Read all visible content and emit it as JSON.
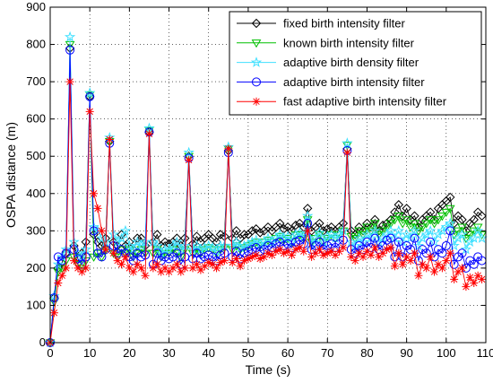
{
  "chart_data": {
    "type": "line",
    "xlabel": "Time (s)",
    "ylabel": "OSPA distance (m)",
    "xlim": [
      0,
      110
    ],
    "ylim": [
      0,
      900
    ],
    "xticks": [
      0,
      10,
      20,
      30,
      40,
      50,
      60,
      70,
      80,
      90,
      100,
      110
    ],
    "yticks": [
      0,
      100,
      200,
      300,
      400,
      500,
      600,
      700,
      800,
      900
    ],
    "xtick_labels": [
      "0",
      "10",
      "20",
      "30",
      "40",
      "50",
      "60",
      "70",
      "80",
      "90",
      "100",
      "110"
    ],
    "ytick_labels": [
      "0",
      "100",
      "200",
      "300",
      "400",
      "500",
      "600",
      "700",
      "800",
      "900"
    ],
    "grid": true,
    "legend_position": "top-right",
    "x": [
      1,
      2,
      3,
      4,
      5,
      6,
      7,
      8,
      9,
      10,
      11,
      12,
      13,
      14,
      15,
      16,
      17,
      18,
      19,
      20,
      21,
      22,
      23,
      24,
      25,
      26,
      27,
      28,
      29,
      30,
      31,
      32,
      33,
      34,
      35,
      36,
      37,
      38,
      39,
      40,
      41,
      42,
      43,
      44,
      45,
      46,
      47,
      48,
      49,
      50,
      51,
      52,
      53,
      54,
      55,
      56,
      57,
      58,
      59,
      60,
      61,
      62,
      63,
      64,
      65,
      66,
      67,
      68,
      69,
      70,
      71,
      72,
      73,
      74,
      75,
      76,
      77,
      78,
      79,
      80,
      81,
      82,
      83,
      84,
      85,
      86,
      87,
      88,
      89,
      90,
      91,
      92,
      93,
      94,
      95,
      96,
      97,
      98,
      99,
      100,
      101,
      102,
      103,
      104,
      105,
      106,
      107,
      108,
      109,
      110
    ],
    "series": [
      {
        "name": "fixed birth intensity filter",
        "color": "#000000",
        "marker": "diamond",
        "values": [
          0,
          120,
          200,
          215,
          240,
          790,
          260,
          230,
          240,
          270,
          660,
          290,
          270,
          260,
          280,
          540,
          270,
          260,
          290,
          260,
          270,
          250,
          280,
          280,
          260,
          565,
          270,
          290,
          260,
          270,
          265,
          270,
          280,
          260,
          280,
          500,
          265,
          285,
          270,
          280,
          290,
          280,
          270,
          290,
          285,
          515,
          280,
          300,
          280,
          290,
          290,
          300,
          305,
          295,
          300,
          310,
          300,
          310,
          320,
          305,
          310,
          300,
          315,
          320,
          310,
          360,
          300,
          310,
          320,
          300,
          305,
          310,
          300,
          310,
          320,
          520,
          300,
          290,
          310,
          300,
          320,
          310,
          330,
          300,
          315,
          320,
          330,
          350,
          370,
          340,
          360,
          330,
          340,
          310,
          330,
          340,
          350,
          330,
          360,
          370,
          380,
          390,
          320,
          340,
          330,
          300,
          320,
          330,
          350,
          340
        ]
      },
      {
        "name": "known birth intensity filter",
        "color": "#00c000",
        "marker": "triangle-down",
        "values": [
          0,
          110,
          190,
          200,
          220,
          800,
          230,
          210,
          200,
          220,
          665,
          230,
          240,
          230,
          250,
          540,
          240,
          230,
          250,
          240,
          250,
          230,
          240,
          250,
          240,
          570,
          240,
          250,
          230,
          240,
          240,
          250,
          240,
          230,
          250,
          500,
          240,
          250,
          240,
          250,
          255,
          250,
          240,
          250,
          255,
          520,
          250,
          260,
          250,
          255,
          260,
          265,
          270,
          260,
          270,
          275,
          270,
          280,
          285,
          275,
          280,
          270,
          290,
          290,
          280,
          330,
          270,
          280,
          290,
          270,
          280,
          290,
          280,
          290,
          300,
          530,
          285,
          280,
          300,
          290,
          310,
          300,
          320,
          290,
          300,
          310,
          320,
          330,
          340,
          320,
          330,
          310,
          320,
          300,
          310,
          320,
          330,
          320,
          330,
          340,
          350,
          360,
          290,
          300,
          310,
          280,
          290,
          300,
          310,
          290
        ]
      },
      {
        "name": "adaptive birth density filter",
        "color": "#40e0ff",
        "marker": "star",
        "values": [
          0,
          125,
          210,
          230,
          250,
          820,
          270,
          240,
          230,
          250,
          670,
          310,
          300,
          280,
          270,
          550,
          290,
          270,
          280,
          300,
          260,
          250,
          270,
          260,
          270,
          575,
          270,
          260,
          240,
          250,
          250,
          260,
          270,
          250,
          260,
          510,
          250,
          260,
          250,
          255,
          260,
          255,
          245,
          260,
          260,
          525,
          260,
          270,
          255,
          260,
          265,
          270,
          275,
          265,
          270,
          280,
          270,
          280,
          290,
          280,
          285,
          270,
          290,
          295,
          285,
          340,
          265,
          280,
          295,
          270,
          285,
          290,
          280,
          290,
          300,
          535,
          270,
          260,
          280,
          270,
          290,
          280,
          300,
          270,
          280,
          290,
          300,
          280,
          300,
          270,
          290,
          280,
          300,
          260,
          280,
          290,
          300,
          270,
          290,
          300,
          310,
          320,
          260,
          280,
          290,
          250,
          270,
          280,
          300,
          280
        ]
      },
      {
        "name": "adaptive birth intensity filter",
        "color": "#0000ff",
        "marker": "circle",
        "values": [
          0,
          120,
          230,
          220,
          240,
          785,
          250,
          225,
          210,
          230,
          660,
          300,
          240,
          230,
          250,
          535,
          260,
          240,
          250,
          240,
          230,
          220,
          240,
          230,
          235,
          565,
          210,
          240,
          220,
          230,
          225,
          230,
          240,
          210,
          230,
          495,
          225,
          240,
          225,
          230,
          235,
          230,
          220,
          235,
          240,
          510,
          230,
          245,
          225,
          240,
          245,
          250,
          255,
          245,
          250,
          260,
          255,
          265,
          270,
          260,
          265,
          255,
          270,
          275,
          265,
          320,
          250,
          260,
          270,
          250,
          260,
          265,
          255,
          265,
          275,
          515,
          250,
          240,
          260,
          250,
          270,
          255,
          280,
          250,
          260,
          275,
          280,
          230,
          270,
          230,
          260,
          250,
          280,
          220,
          250,
          240,
          270,
          230,
          250,
          240,
          260,
          300,
          210,
          230,
          240,
          200,
          220,
          210,
          230,
          220
        ]
      },
      {
        "name": "fast adaptive birth intensity filter",
        "color": "#ff0000",
        "marker": "asterisk",
        "values": [
          0,
          80,
          160,
          180,
          200,
          700,
          220,
          200,
          190,
          200,
          620,
          400,
          360,
          300,
          250,
          545,
          240,
          220,
          210,
          230,
          200,
          190,
          210,
          200,
          180,
          560,
          200,
          210,
          190,
          200,
          190,
          200,
          210,
          190,
          200,
          490,
          200,
          210,
          195,
          205,
          215,
          210,
          200,
          215,
          220,
          520,
          215,
          225,
          205,
          220,
          225,
          230,
          235,
          225,
          230,
          240,
          235,
          245,
          250,
          240,
          245,
          235,
          250,
          255,
          245,
          300,
          230,
          240,
          250,
          235,
          240,
          245,
          235,
          245,
          255,
          510,
          230,
          220,
          240,
          230,
          245,
          235,
          255,
          230,
          240,
          250,
          255,
          205,
          240,
          210,
          230,
          220,
          240,
          180,
          210,
          200,
          230,
          190,
          210,
          200,
          220,
          240,
          170,
          190,
          200,
          150,
          175,
          160,
          180,
          170
        ]
      }
    ]
  }
}
